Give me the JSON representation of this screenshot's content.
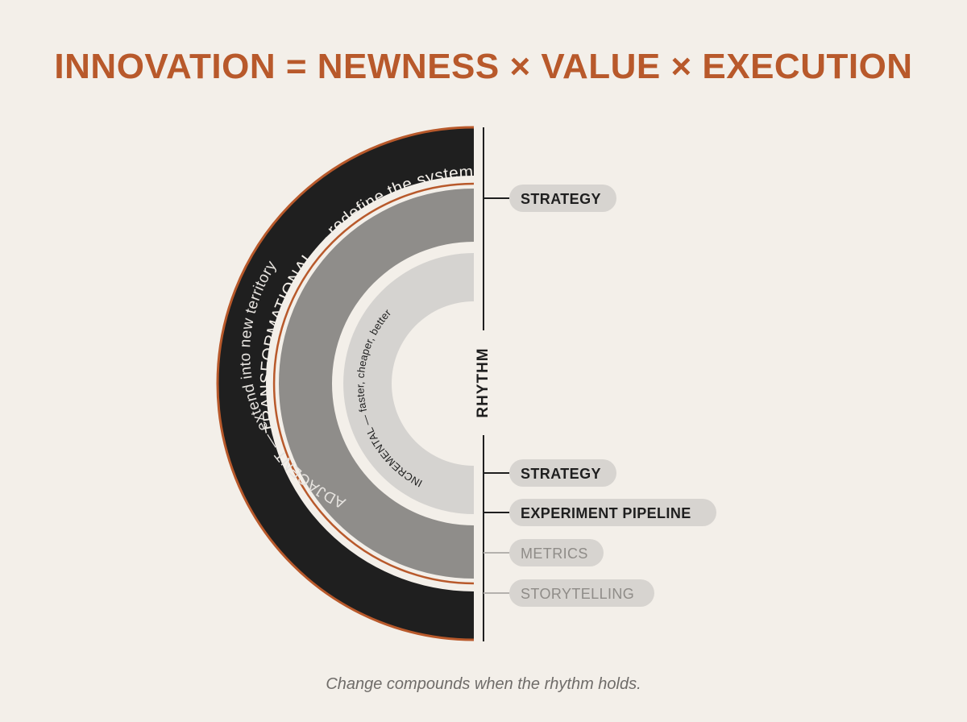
{
  "title": "INNOVATION = NEWNESS × VALUE × EXECUTION",
  "rings": {
    "transformational": "TRANSFORMATIONAL — redefine the system",
    "adjacent": "ADJACENT — extend into new territory",
    "incremental": "INCREMENTAL — faster, cheaper, better"
  },
  "axis_label": "RHYTHM",
  "pills": [
    {
      "label": "STRATEGY",
      "state": "active"
    },
    {
      "label": "STRATEGY",
      "state": "active"
    },
    {
      "label": "EXPERIMENT PIPELINE",
      "state": "active"
    },
    {
      "label": "METRICS",
      "state": "muted"
    },
    {
      "label": "STORYTELLING",
      "state": "muted"
    }
  ],
  "caption": "Change compounds when the rhythm holds.",
  "colors": {
    "title": "#b8592b",
    "ring_outer": "#1f1f1f",
    "ring_outer_border": "#b8592b",
    "ring_middle": "#8f8d8a",
    "ring_inner": "#d5d3d0",
    "background": "#f3efe9"
  }
}
